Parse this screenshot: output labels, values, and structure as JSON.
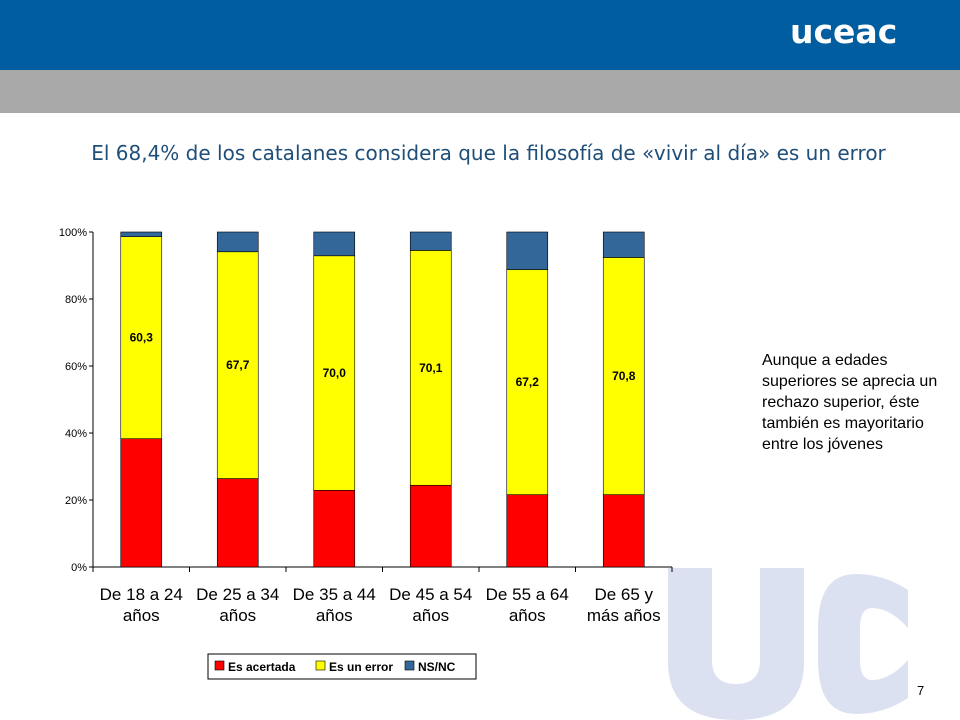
{
  "header": {
    "logo_text": "uceac",
    "brand_color": "#005ea0",
    "band_color": "#a9a9a9"
  },
  "slide": {
    "title": "El 68,4% de los catalanes considera que la filosofía de «vivir al día» es un error",
    "side_note": "Aunque a edades superiores se aprecia un rechazo superior, éste también es mayoritario entre los jóvenes",
    "page_number": "7",
    "watermark_text": "UC"
  },
  "chart_data": {
    "type": "bar",
    "stacked": true,
    "categories": [
      [
        "De 18 a 24",
        "años"
      ],
      [
        "De 25 a 34",
        "años"
      ],
      [
        "De 35 a 44",
        "años"
      ],
      [
        "De 45 a 54",
        "años"
      ],
      [
        "De 55 a 64",
        "años"
      ],
      [
        "De 65 y",
        "más años"
      ]
    ],
    "series": [
      {
        "name": "Es acertada",
        "color": "#ff0000",
        "values": [
          38.3,
          26.4,
          22.9,
          24.4,
          21.6,
          21.6
        ]
      },
      {
        "name": "Es un error",
        "color": "#ffff00",
        "values": [
          60.3,
          67.7,
          70.0,
          70.1,
          67.2,
          70.8
        ],
        "labels": [
          "60,3",
          "67,7",
          "70,0",
          "70,1",
          "67,2",
          "70,8"
        ]
      },
      {
        "name": "NS/NC",
        "color": "#336699",
        "values": [
          1.4,
          5.9,
          7.1,
          5.5,
          11.2,
          7.6
        ]
      }
    ],
    "ylim": [
      0,
      100
    ],
    "yticks": [
      "0%",
      "20%",
      "40%",
      "60%",
      "80%",
      "100%"
    ],
    "grid": false,
    "legend_position": "bottom"
  }
}
